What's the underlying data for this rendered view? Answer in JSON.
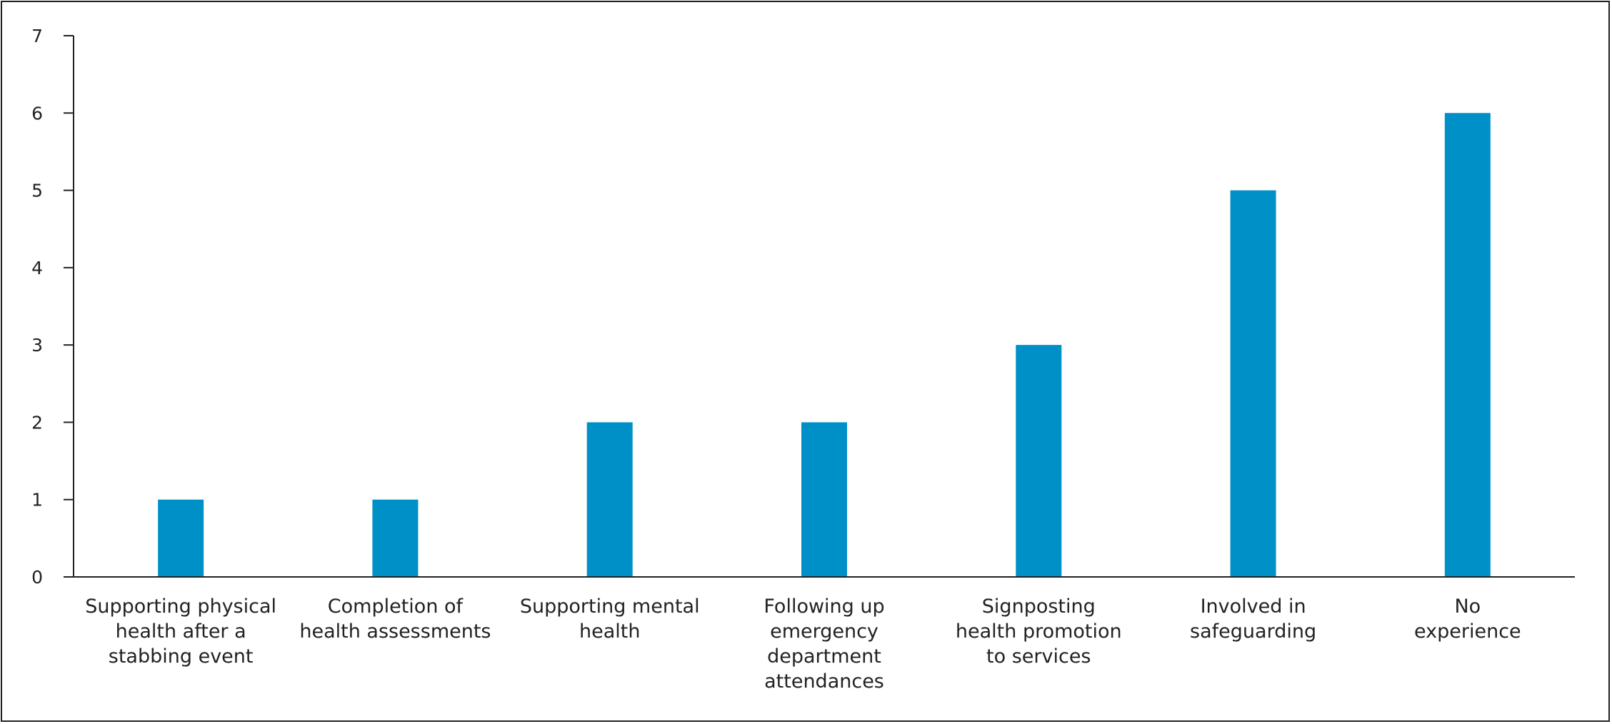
{
  "chart_data": {
    "type": "bar",
    "title": "",
    "xlabel": "",
    "ylabel": "",
    "ylim": [
      0,
      7
    ],
    "yticks": [
      0,
      1,
      2,
      3,
      4,
      5,
      6,
      7
    ],
    "grid": false,
    "legend": "none",
    "bar_color": "#0090c8",
    "categories": [
      [
        "Supporting physical",
        "health after a",
        "stabbing event"
      ],
      [
        "Completion of",
        "health assessments"
      ],
      [
        "Supporting mental",
        "health"
      ],
      [
        "Following up",
        "emergency",
        "department",
        "attendances"
      ],
      [
        "Signposting",
        "health promotion",
        "to services"
      ],
      [
        "Involved in",
        "safeguarding"
      ],
      [
        "No",
        "experience"
      ]
    ],
    "values": [
      1,
      1,
      2,
      2,
      3,
      5,
      6
    ]
  }
}
